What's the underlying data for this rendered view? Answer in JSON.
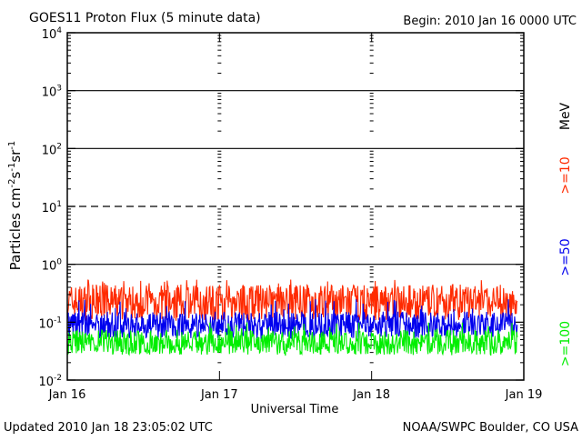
{
  "chart_data": {
    "type": "line",
    "title": "GOES11 Proton Flux (5 minute data)",
    "begin_label": "Begin: 2010 Jan 16 0000 UTC",
    "xlabel": "Universal Time",
    "ylabel": "Particles cm",
    "ylabel_sup1": "-2",
    "ylabel_mid1": "s",
    "ylabel_sup2": "-1",
    "ylabel_mid2": "sr",
    "ylabel_sup3": "-1",
    "y_scale": "log",
    "ylim": [
      0.01,
      10000
    ],
    "xlim": [
      0,
      72
    ],
    "x_unit": "hours since 2010 Jan 16 0000 UTC",
    "x_ticks": [
      {
        "value": 0,
        "label": "Jan 16"
      },
      {
        "value": 24,
        "label": "Jan 17"
      },
      {
        "value": 48,
        "label": "Jan 18"
      },
      {
        "value": 72,
        "label": "Jan 19"
      }
    ],
    "y_ticks": [
      {
        "value": 0.01,
        "base": "10",
        "exp": "-2"
      },
      {
        "value": 0.1,
        "base": "10",
        "exp": "-1"
      },
      {
        "value": 1,
        "base": "10",
        "exp": "0"
      },
      {
        "value": 10,
        "base": "10",
        "exp": "1"
      },
      {
        "value": 100,
        "base": "10",
        "exp": "2"
      },
      {
        "value": 1000,
        "base": "10",
        "exp": "3"
      },
      {
        "value": 10000,
        "base": "10",
        "exp": "4"
      }
    ],
    "reference_lines": [
      {
        "value": 1,
        "style": "solid"
      },
      {
        "value": 10,
        "style": "dashed"
      },
      {
        "value": 100,
        "style": "solid"
      },
      {
        "value": 1000,
        "style": "solid"
      }
    ],
    "legend_unit": "MeV",
    "series": [
      {
        "name": ">=10",
        "color": "#ff2a00",
        "typical_value": 0.22,
        "min_value": 0.1,
        "max_value": 0.55
      },
      {
        "name": ">=50",
        "color": "#0000ee",
        "typical_value": 0.09,
        "min_value": 0.05,
        "max_value": 0.25
      },
      {
        "name": ">=100",
        "color": "#00ee00",
        "typical_value": 0.045,
        "min_value": 0.026,
        "max_value": 0.1
      }
    ]
  },
  "footer": {
    "updated": "Updated 2010 Jan 18 23:05:02 UTC",
    "credit": "NOAA/SWPC Boulder, CO USA"
  }
}
